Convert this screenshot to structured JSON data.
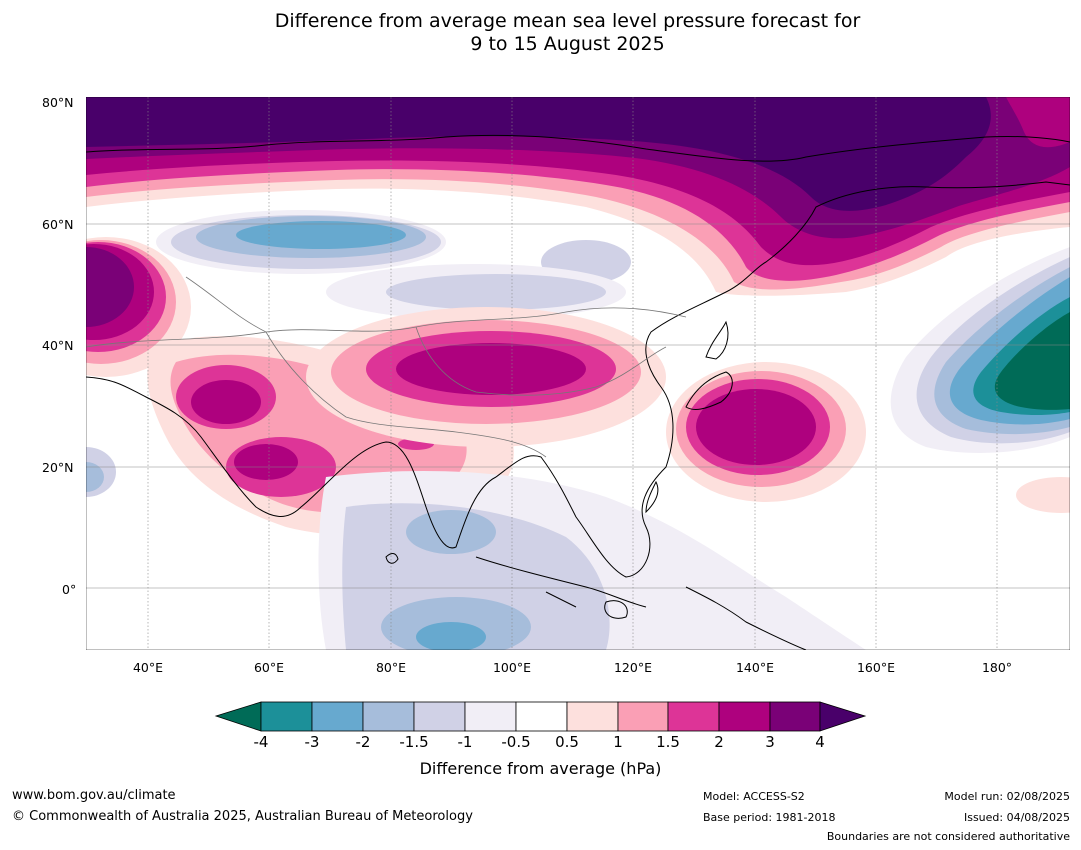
{
  "title": {
    "line1": "Difference from average mean sea level pressure forecast for",
    "line2": "9 to 15 August 2025"
  },
  "lat_labels": [
    "80°N",
    "60°N",
    "40°N",
    "20°N",
    "0°"
  ],
  "lon_labels": [
    "40°E",
    "60°E",
    "80°E",
    "100°E",
    "120°E",
    "140°E",
    "160°E",
    "180°"
  ],
  "colorbar": {
    "ticks": [
      "-4",
      "-3",
      "-2",
      "-1.5",
      "-1",
      "-0.5",
      "0.5",
      "1",
      "1.5",
      "2",
      "3",
      "4"
    ],
    "colors": {
      "below_-4": "#006b57",
      "-4_-3": "#1c9099",
      "-3_-2": "#67a9cf",
      "-2_-1.5": "#a6bddb",
      "-1.5_-1": "#d0d1e6",
      "-1_-0.5": "#f1eef6",
      "-0.5_0.5": "#ffffff",
      "0.5_1": "#fde0dd",
      "1_1.5": "#fa9fb5",
      "1.5_2": "#dd3497",
      "2_3": "#ae017e",
      "3_4": "#7a0177",
      "above_4": "#49006a"
    },
    "label": "Difference from average (hPa)"
  },
  "footer": {
    "url": "www.bom.gov.au/climate",
    "copyright": "© Commonwealth of Australia 2025, Australian Bureau of Meteorology",
    "model": "Model: ACCESS-S2",
    "base_period": "Base period: 1981-2018",
    "model_run": "Model run: 02/08/2025",
    "issued": "Issued: 04/08/2025",
    "disclaimer": "Boundaries are not considered authoritative"
  }
}
